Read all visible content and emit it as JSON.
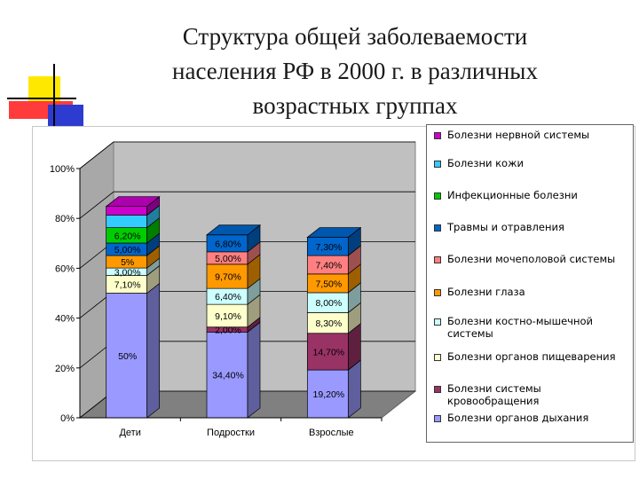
{
  "title": {
    "lines": [
      "Структура общей заболеваемости",
      "населения РФ в 2000 г. в различных",
      "возрастных группах"
    ]
  },
  "colors": {
    "deco_yellow": "#FFE800",
    "deco_red": "#FF3B3B",
    "deco_blue": "#2E3BD0",
    "plot_wall": "#C0C0C0",
    "plot_floor": "#808080"
  },
  "chart_data": {
    "type": "bar",
    "stacked": true,
    "percent": true,
    "three_d": true,
    "categories": [
      "Дети",
      "Подростки",
      "Взрослые"
    ],
    "y_ticks": [
      "0%",
      "20%",
      "40%",
      "60%",
      "80%",
      "100%"
    ],
    "ylim": [
      0,
      100
    ],
    "legend_position": "right",
    "series": [
      {
        "name": "Болезни органов дыхания",
        "color": "#9999FF",
        "values": [
          50,
          34.4,
          19.2
        ],
        "labels": [
          "50%",
          "34,40%",
          "19,20%"
        ]
      },
      {
        "name": "Болезни системы кровообращения",
        "color": "#993366",
        "values": [
          0,
          2.0,
          14.7
        ],
        "labels": [
          "",
          "2,00%",
          "14,70%"
        ]
      },
      {
        "name": "Болезни органов пищеварения",
        "color": "#FFFFCC",
        "values": [
          7.1,
          9.1,
          8.3
        ],
        "labels": [
          "7,10%",
          "9,10%",
          "8,30%"
        ]
      },
      {
        "name": "Болезни костно-мышечной системы",
        "color": "#CCFFFF",
        "values": [
          3.0,
          6.4,
          8.0
        ],
        "labels": [
          "3,00%",
          "6,40%",
          "8,00%"
        ]
      },
      {
        "name": "Болезни глаза",
        "color": "#FF9900",
        "values": [
          5,
          9.7,
          7.5
        ],
        "labels": [
          "5%",
          "9,70%",
          "7,50%"
        ]
      },
      {
        "name": "Болезни мочеполовой системы",
        "color": "#FF8080",
        "values": [
          0,
          5.0,
          7.4
        ],
        "labels": [
          "",
          "5,00%",
          "7,40%"
        ]
      },
      {
        "name": "Травмы и отравления",
        "color": "#0066CC",
        "values": [
          5.0,
          6.8,
          7.3
        ],
        "labels": [
          "5,00%",
          "6,80%",
          "7,30%"
        ]
      },
      {
        "name": "Инфекционные болезни",
        "color": "#00CC00",
        "values": [
          6.2,
          0,
          0
        ],
        "labels": [
          "6,20%",
          "",
          ""
        ]
      },
      {
        "name": "Болезни кожи",
        "color": "#33CCFF",
        "values": [
          5.0,
          0,
          0
        ],
        "labels": [
          "",
          "",
          ""
        ]
      },
      {
        "name": "Болезни нервной системы",
        "color": "#CC00CC",
        "values": [
          3.5,
          0,
          0
        ],
        "labels": [
          "",
          "",
          ""
        ]
      }
    ]
  }
}
